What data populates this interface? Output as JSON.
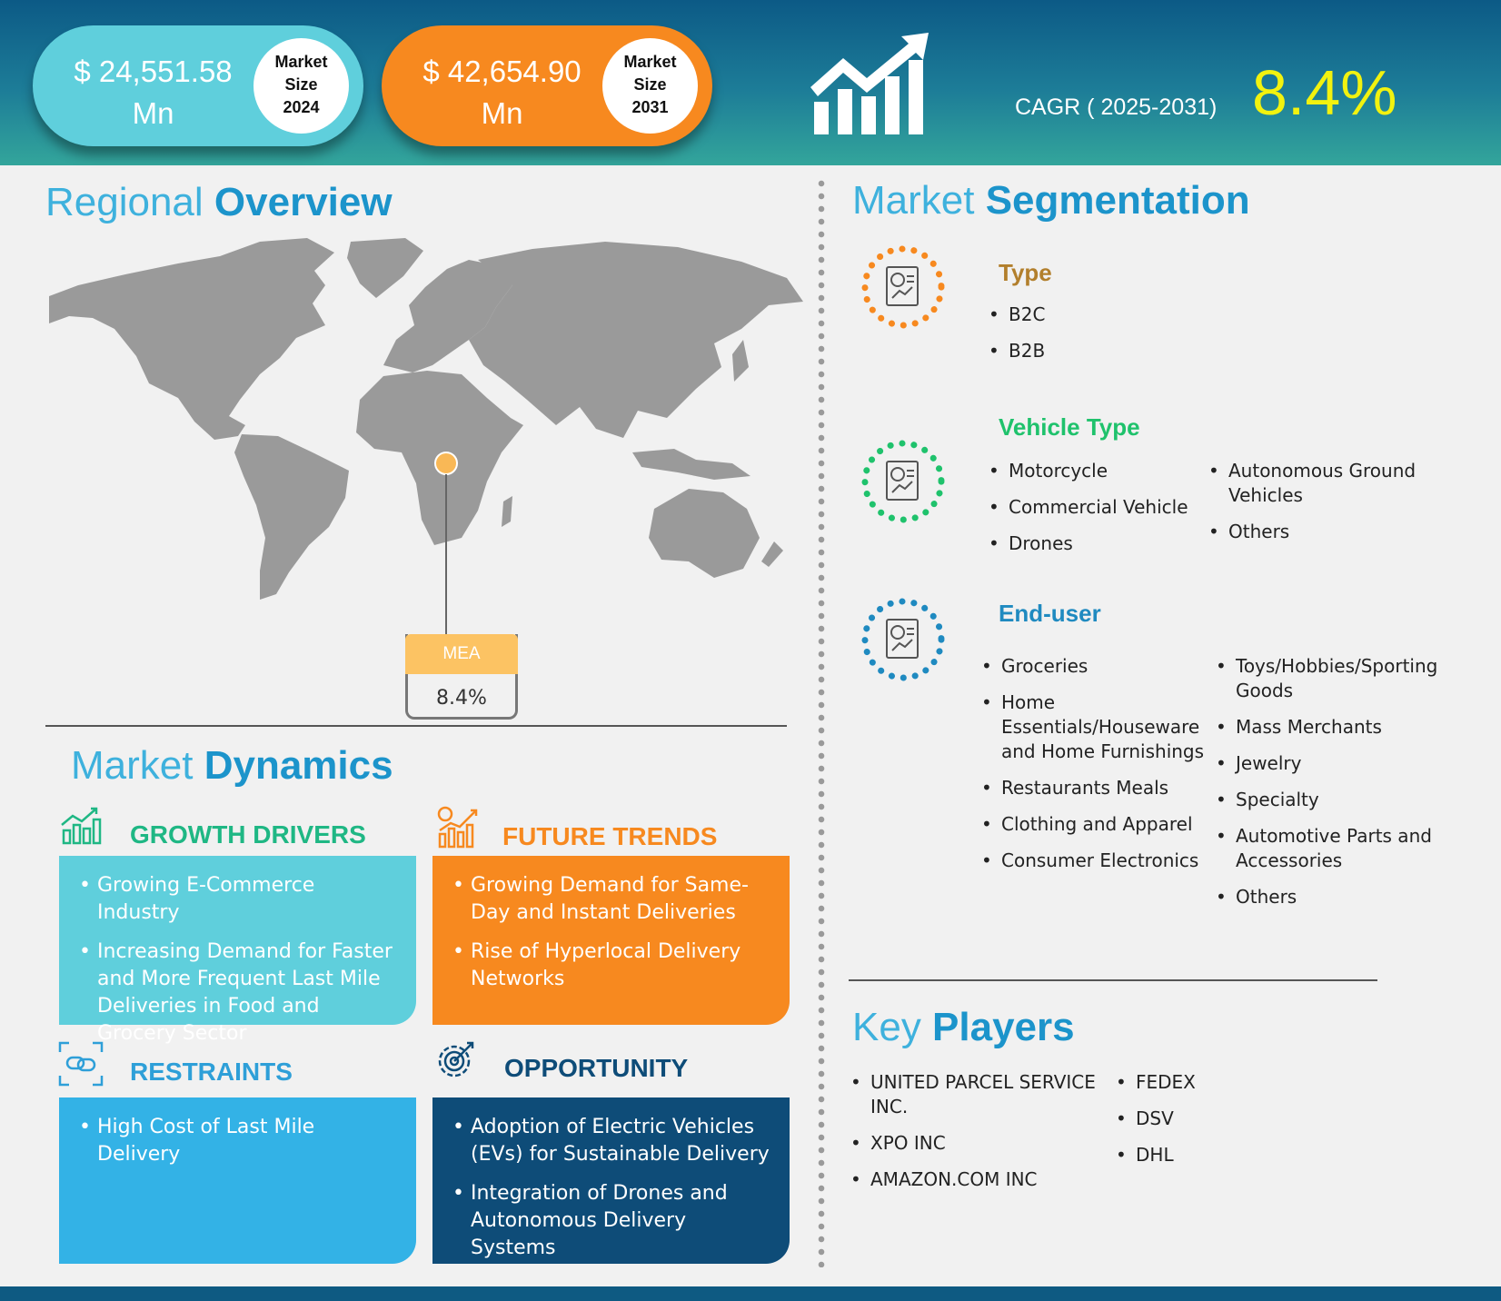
{
  "header": {
    "market_2024": {
      "value": "$ 24,551.58",
      "unit": "Mn",
      "label1": "Market",
      "label2": "Size",
      "year": "2024",
      "color": "#5fcfdc"
    },
    "market_2031": {
      "value": "$  42,654.90",
      "unit": "Mn",
      "label1": "Market",
      "label2": "Size",
      "year": "2031",
      "color": "#f7891f"
    },
    "cagr_label": "CAGR ( 2025-2031)",
    "cagr_value": "8.4%"
  },
  "regional": {
    "title_light": "Regional ",
    "title_bold": "Overview",
    "callout_region": "MEA",
    "callout_value": "8.4%"
  },
  "segmentation": {
    "title_light": "Market ",
    "title_bold": "Segmentation",
    "type": {
      "title": "Type",
      "color": "#b27f2c",
      "items": [
        "B2C",
        "B2B"
      ]
    },
    "vehicle": {
      "title": "Vehicle Type",
      "color": "#1fc26c",
      "col1": [
        "Motorcycle",
        "Commercial Vehicle",
        "Drones"
      ],
      "col2": [
        "Autonomous Ground Vehicles",
        "Others"
      ]
    },
    "enduser": {
      "title": "End-user",
      "color": "#1f8ac0",
      "col1": [
        "Groceries",
        "Home Essentials/Houseware and Home Furnishings",
        "Restaurants Meals",
        "Clothing and Apparel",
        "Consumer Electronics"
      ],
      "col2": [
        "Toys/Hobbies/Sporting Goods",
        "Mass Merchants",
        "Jewelry",
        "Specialty",
        "Automotive Parts and Accessories",
        "Others"
      ]
    }
  },
  "dynamics": {
    "title_light": "Market ",
    "title_bold": "Dynamics",
    "drivers": {
      "title": "GROWTH DRIVERS",
      "color": "#1fb784",
      "items": [
        "Growing E-Commerce Industry",
        "Increasing Demand for Faster and More Frequent Last Mile Deliveries in Food and Grocery Sector"
      ]
    },
    "trends": {
      "title": "FUTURE TRENDS",
      "color": "#f7891f",
      "items": [
        "Growing Demand for Same-Day and Instant Deliveries",
        "Rise of Hyperlocal Delivery Networks"
      ]
    },
    "restraints": {
      "title": "RESTRAINTS",
      "color": "#2e9fd8",
      "items": [
        "High Cost of Last Mile Delivery"
      ]
    },
    "opportunity": {
      "title": "OPPORTUNITY",
      "color": "#0e4c78",
      "items": [
        "Adoption of Electric Vehicles (EVs) for Sustainable Delivery",
        "Integration of Drones and Autonomous Delivery Systems"
      ]
    }
  },
  "players": {
    "title_light": "Key ",
    "title_bold": "Players",
    "col1": [
      "UNITED PARCEL SERVICE INC.",
      "XPO INC",
      "AMAZON.COM INC"
    ],
    "col2": [
      "FEDEX",
      "DSV",
      "DHL"
    ]
  }
}
